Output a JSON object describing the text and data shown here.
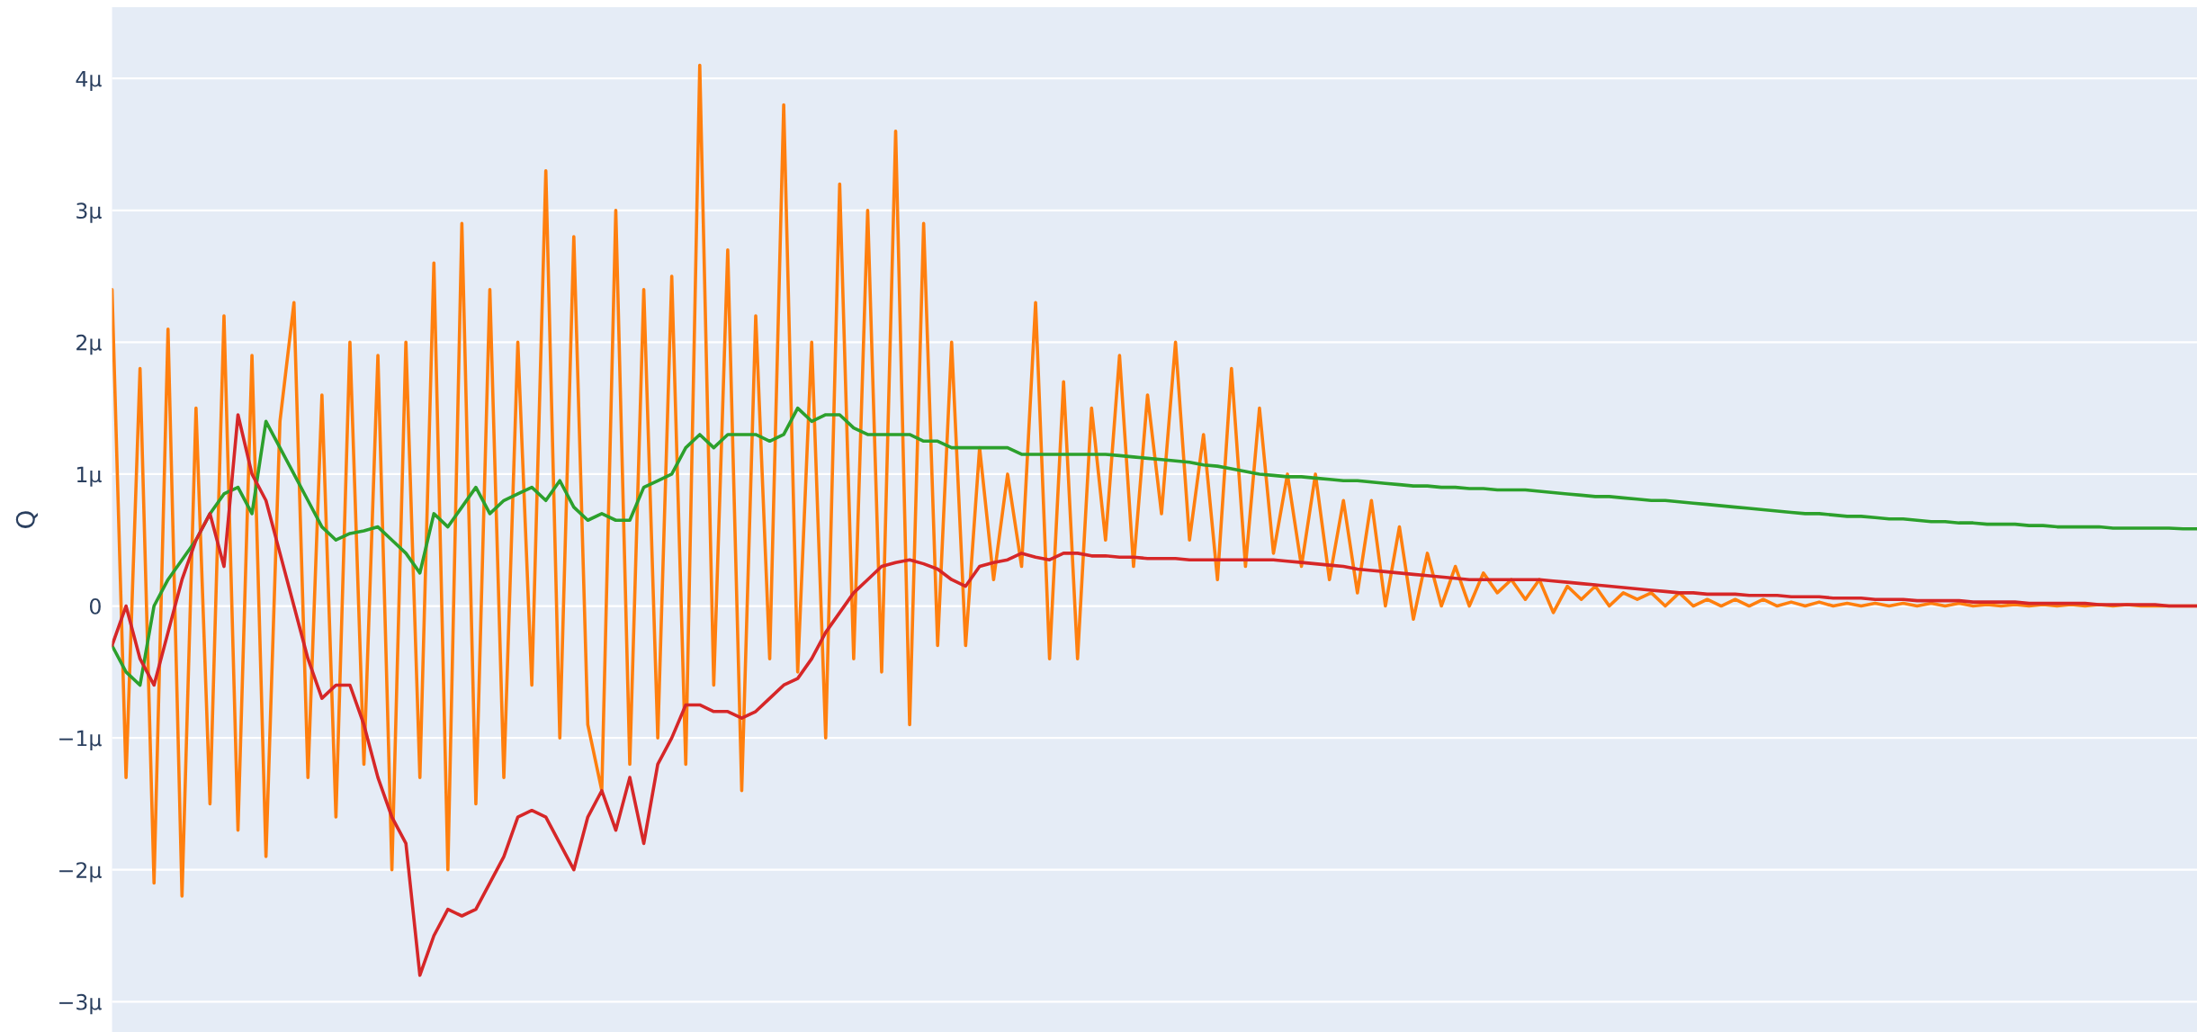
{
  "chart_data": {
    "type": "line",
    "ylabel": "Q",
    "categories": [
      null,
      null,
      null,
      null,
      null,
      null,
      null,
      null,
      null,
      null,
      null,
      null,
      null,
      null,
      null,
      null,
      null,
      null,
      null,
      null,
      null,
      null,
      null,
      null,
      null,
      null,
      null,
      null,
      null,
      null,
      null,
      null,
      null,
      null,
      null,
      null,
      null,
      null,
      null,
      null,
      null,
      null,
      null,
      null,
      null,
      null,
      null,
      null,
      null,
      null,
      null,
      null,
      null,
      null,
      null,
      null,
      null,
      null,
      null,
      null,
      null,
      null,
      null,
      null,
      null,
      null,
      null,
      null,
      null,
      null,
      null,
      null,
      null,
      null,
      null,
      null,
      null,
      null,
      null,
      null,
      null,
      null,
      null,
      null,
      null,
      null,
      null,
      null,
      null,
      null,
      null,
      null,
      null,
      null,
      null,
      null,
      null,
      null,
      null,
      null,
      null,
      null,
      null,
      null,
      null,
      null,
      null,
      null,
      null,
      null,
      null,
      null,
      null,
      null,
      null,
      null,
      null,
      null,
      null,
      null,
      null,
      null,
      null,
      null,
      null,
      null,
      null,
      null,
      null,
      null,
      null,
      null,
      null,
      null,
      null,
      null,
      null,
      null,
      null,
      null,
      null,
      null,
      null,
      null,
      null,
      null,
      null,
      null,
      null,
      null
    ],
    "ylim": [
      -3.23,
      4.54
    ],
    "yticks": [
      {
        "value": -3,
        "label": "−3μ"
      },
      {
        "value": -2,
        "label": "−2μ"
      },
      {
        "value": -1,
        "label": "−1μ"
      },
      0,
      {
        "value": 1,
        "label": "1μ"
      },
      {
        "value": 2,
        "label": "2μ"
      },
      {
        "value": 3,
        "label": "3μ"
      },
      {
        "value": 4,
        "label": "4μ"
      }
    ],
    "tick_labels": "y",
    "grid": "y",
    "legend": false,
    "line_style": "solid",
    "marker": "none",
    "series": [
      {
        "color": "#ff7f0e",
        "values": [
          2.4,
          -1.3,
          1.8,
          -2.1,
          2.1,
          -2.2,
          1.5,
          -1.5,
          2.2,
          -1.7,
          1.9,
          -1.9,
          1.4,
          2.3,
          -1.3,
          1.6,
          -1.6,
          2.0,
          -1.2,
          1.9,
          -2.0,
          2.0,
          -1.3,
          2.6,
          -2.0,
          2.9,
          -1.5,
          2.4,
          -1.3,
          2.0,
          -0.6,
          3.3,
          -1.0,
          2.8,
          -0.9,
          -1.4,
          3.0,
          -1.2,
          2.4,
          -1.0,
          2.5,
          -1.2,
          4.1,
          -0.6,
          2.7,
          -1.4,
          2.2,
          -0.4,
          3.8,
          -0.5,
          2.0,
          -1.0,
          3.2,
          -0.4,
          3.0,
          -0.5,
          3.6,
          -0.9,
          2.9,
          -0.3,
          2.0,
          -0.3,
          1.2,
          0.2,
          1.0,
          0.3,
          2.3,
          -0.4,
          1.7,
          -0.4,
          1.5,
          0.5,
          1.9,
          0.3,
          1.6,
          0.7,
          2.0,
          0.5,
          1.3,
          0.2,
          1.8,
          0.3,
          1.5,
          0.4,
          1.0,
          0.3,
          1.0,
          0.2,
          0.8,
          0.1,
          0.8,
          0.0,
          0.6,
          -0.1,
          0.4,
          0.0,
          0.3,
          0.0,
          0.25,
          0.1,
          0.2,
          0.05,
          0.2,
          -0.05,
          0.15,
          0.05,
          0.15,
          0.0,
          0.1,
          0.05,
          0.1,
          0.0,
          0.1,
          0.0,
          0.05,
          0.0,
          0.05,
          0.0,
          0.05,
          0.0,
          0.03,
          0.0,
          0.03,
          0.0,
          0.02,
          0.0,
          0.02,
          0.0,
          0.02,
          0.0,
          0.02,
          0.0,
          0.02,
          0.0,
          0.01,
          0.0,
          0.01,
          0.0,
          0.01,
          0.0,
          0.01,
          0.0,
          0.01,
          0.0,
          0.01,
          0.0,
          0.0,
          0.0,
          0.0,
          0.0
        ]
      },
      {
        "color": "#2ca02c",
        "values": [
          -0.3,
          -0.5,
          -0.6,
          0.0,
          0.2,
          0.35,
          0.5,
          0.7,
          0.85,
          0.9,
          0.7,
          1.4,
          1.2,
          1.0,
          0.8,
          0.6,
          0.5,
          0.55,
          0.57,
          0.6,
          0.5,
          0.4,
          0.25,
          0.7,
          0.6,
          0.75,
          0.9,
          0.7,
          0.8,
          0.85,
          0.9,
          0.8,
          0.95,
          0.75,
          0.65,
          0.7,
          0.65,
          0.65,
          0.9,
          0.95,
          1.0,
          1.2,
          1.3,
          1.2,
          1.3,
          1.3,
          1.3,
          1.25,
          1.3,
          1.5,
          1.4,
          1.45,
          1.45,
          1.35,
          1.3,
          1.3,
          1.3,
          1.3,
          1.25,
          1.25,
          1.2,
          1.2,
          1.2,
          1.2,
          1.2,
          1.15,
          1.15,
          1.15,
          1.15,
          1.15,
          1.15,
          1.15,
          1.14,
          1.13,
          1.12,
          1.11,
          1.1,
          1.09,
          1.07,
          1.06,
          1.04,
          1.02,
          1.0,
          0.99,
          0.98,
          0.98,
          0.97,
          0.96,
          0.95,
          0.95,
          0.94,
          0.93,
          0.92,
          0.91,
          0.91,
          0.9,
          0.9,
          0.89,
          0.89,
          0.88,
          0.88,
          0.88,
          0.87,
          0.86,
          0.85,
          0.84,
          0.83,
          0.83,
          0.82,
          0.81,
          0.8,
          0.8,
          0.79,
          0.78,
          0.77,
          0.76,
          0.75,
          0.74,
          0.73,
          0.72,
          0.71,
          0.7,
          0.7,
          0.69,
          0.68,
          0.68,
          0.67,
          0.66,
          0.66,
          0.65,
          0.64,
          0.64,
          0.63,
          0.63,
          0.62,
          0.62,
          0.62,
          0.61,
          0.61,
          0.6,
          0.6,
          0.6,
          0.6,
          0.59,
          0.59,
          0.59,
          0.59,
          0.59,
          0.585,
          0.585
        ]
      },
      {
        "color": "#d62728",
        "values": [
          -0.3,
          0.0,
          -0.4,
          -0.6,
          -0.2,
          0.2,
          0.5,
          0.7,
          0.3,
          1.45,
          1.0,
          0.8,
          0.4,
          0.0,
          -0.4,
          -0.7,
          -0.6,
          -0.6,
          -0.9,
          -1.3,
          -1.6,
          -1.8,
          -2.8,
          -2.5,
          -2.3,
          -2.35,
          -2.3,
          -2.1,
          -1.9,
          -1.6,
          -1.55,
          -1.6,
          -1.8,
          -2.0,
          -1.6,
          -1.4,
          -1.7,
          -1.3,
          -1.8,
          -1.2,
          -1.0,
          -0.75,
          -0.75,
          -0.8,
          -0.8,
          -0.85,
          -0.8,
          -0.7,
          -0.6,
          -0.55,
          -0.4,
          -0.2,
          -0.05,
          0.1,
          0.2,
          0.3,
          0.33,
          0.35,
          0.32,
          0.28,
          0.2,
          0.15,
          0.3,
          0.33,
          0.35,
          0.4,
          0.37,
          0.35,
          0.4,
          0.4,
          0.38,
          0.38,
          0.37,
          0.37,
          0.36,
          0.36,
          0.36,
          0.35,
          0.35,
          0.35,
          0.35,
          0.35,
          0.35,
          0.35,
          0.34,
          0.33,
          0.32,
          0.31,
          0.3,
          0.28,
          0.27,
          0.26,
          0.25,
          0.24,
          0.23,
          0.22,
          0.21,
          0.2,
          0.2,
          0.2,
          0.2,
          0.2,
          0.2,
          0.19,
          0.18,
          0.17,
          0.16,
          0.15,
          0.14,
          0.13,
          0.12,
          0.11,
          0.1,
          0.1,
          0.09,
          0.09,
          0.09,
          0.08,
          0.08,
          0.08,
          0.07,
          0.07,
          0.07,
          0.06,
          0.06,
          0.06,
          0.05,
          0.05,
          0.05,
          0.04,
          0.04,
          0.04,
          0.04,
          0.03,
          0.03,
          0.03,
          0.03,
          0.02,
          0.02,
          0.02,
          0.02,
          0.02,
          0.01,
          0.01,
          0.01,
          0.01,
          0.01,
          0.0,
          0.0,
          0.0
        ]
      }
    ]
  }
}
